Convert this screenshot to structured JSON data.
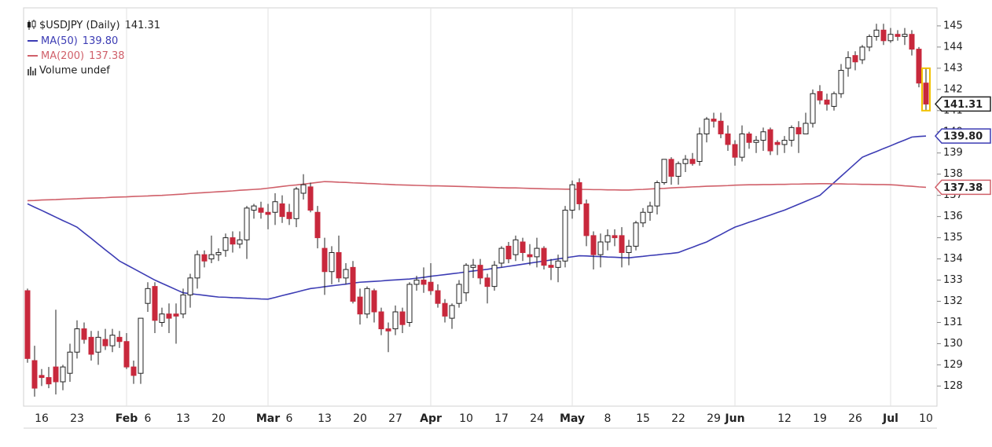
{
  "chart_data": {
    "type": "candlestick",
    "symbol": "$USDJPY (Daily)",
    "current": 141.31,
    "volume_label": "Volume undef",
    "categories": [
      null,
      null,
      "16",
      null,
      null,
      null,
      null,
      "23",
      null,
      null,
      null,
      null,
      null,
      null,
      "Feb",
      null,
      null,
      "6",
      null,
      null,
      null,
      null,
      "13",
      null,
      null,
      null,
      null,
      "20",
      null,
      null,
      null,
      null,
      null,
      null,
      "Mar",
      null,
      null,
      "6",
      null,
      null,
      null,
      null,
      "13",
      null,
      null,
      null,
      null,
      "20",
      null,
      null,
      null,
      null,
      "27",
      null,
      null,
      null,
      null,
      "Apr",
      null,
      null,
      null,
      null,
      "10",
      null,
      null,
      null,
      null,
      "17",
      null,
      null,
      null,
      null,
      "24",
      null,
      null,
      null,
      null,
      "May",
      null,
      null,
      null,
      null,
      "8",
      null,
      null,
      null,
      null,
      "15",
      null,
      null,
      null,
      null,
      "22",
      null,
      null,
      null,
      null,
      "29",
      null,
      null,
      "Jun",
      null,
      null,
      null,
      null,
      null,
      null,
      "12",
      null,
      null,
      null,
      null,
      "19",
      null,
      null,
      null,
      null,
      "26",
      null,
      null,
      null,
      null,
      "Jul",
      null,
      null,
      null,
      null,
      "10"
    ],
    "open": [
      132.5,
      129.2,
      128.5,
      128.4,
      128.9,
      128.2,
      128.6,
      129.6,
      130.7,
      130.3,
      129.6,
      130.2,
      129.9,
      130.3,
      130.1,
      128.9,
      128.6,
      131.9,
      132.7,
      131.0,
      131.4,
      131.4,
      131.4,
      132.3,
      133.1,
      134.2,
      134.0,
      134.2,
      134.4,
      135.0,
      134.7,
      134.9,
      136.3,
      136.4,
      136.2,
      136.2,
      136.6,
      136.2,
      135.9,
      137.1,
      137.4,
      136.2,
      134.5,
      133.4,
      134.3,
      133.1,
      133.6,
      132.2,
      131.4,
      132.5,
      131.5,
      130.7,
      130.7,
      131.5,
      131.0,
      132.8,
      133.0,
      132.9,
      132.5,
      131.9,
      131.2,
      131.9,
      132.4,
      133.6,
      133.7,
      133.1,
      132.7,
      133.8,
      134.6,
      134.2,
      134.8,
      134.2,
      134.1,
      134.5,
      133.7,
      133.6,
      133.9,
      136.3,
      137.6,
      136.6,
      135.1,
      134.2,
      134.8,
      135.1,
      135.1,
      134.3,
      134.6,
      135.7,
      136.2,
      136.5,
      137.6,
      138.7,
      137.9,
      138.5,
      138.7,
      138.6,
      139.9,
      140.6,
      140.5,
      139.9,
      139.4,
      138.8,
      139.9,
      139.5,
      139.6,
      140.1,
      139.5,
      139.4,
      139.6,
      140.2,
      139.9,
      140.4,
      141.9,
      141.5,
      141.2,
      141.8,
      143.0,
      143.6,
      143.4,
      144.0,
      144.5,
      144.8,
      144.3,
      144.6,
      144.5,
      144.6,
      143.9,
      142.3
    ],
    "high": [
      132.6,
      129.9,
      128.8,
      128.9,
      131.6,
      129.0,
      130.0,
      131.1,
      131.0,
      130.6,
      130.6,
      130.7,
      130.7,
      130.6,
      130.5,
      129.2,
      131.2,
      132.9,
      132.9,
      131.7,
      131.9,
      131.9,
      132.6,
      133.3,
      134.4,
      134.4,
      135.1,
      134.5,
      135.2,
      135.3,
      135.3,
      136.5,
      136.6,
      136.7,
      136.6,
      137.1,
      137.0,
      136.6,
      137.4,
      138.0,
      137.6,
      136.5,
      135.0,
      134.6,
      135.1,
      133.8,
      133.9,
      132.6,
      132.7,
      132.6,
      131.7,
      131.0,
      131.8,
      131.7,
      132.9,
      133.2,
      133.6,
      133.8,
      132.8,
      132.1,
      131.9,
      133.0,
      133.8,
      134.0,
      134.0,
      133.3,
      133.9,
      134.6,
      134.8,
      135.1,
      135.0,
      134.7,
      135.0,
      134.6,
      134.0,
      134.2,
      136.5,
      137.7,
      137.8,
      136.8,
      135.3,
      135.2,
      135.4,
      135.4,
      135.5,
      134.9,
      135.8,
      136.4,
      136.7,
      137.7,
      138.7,
      138.8,
      138.6,
      138.9,
      139.0,
      140.2,
      140.7,
      140.9,
      140.9,
      140.3,
      139.6,
      140.3,
      140.0,
      139.8,
      140.2,
      140.2,
      139.6,
      139.8,
      140.3,
      140.5,
      140.9,
      142.0,
      142.2,
      141.8,
      141.9,
      143.2,
      143.8,
      143.8,
      144.1,
      144.6,
      145.1,
      145.1,
      144.9,
      144.8,
      144.9,
      144.8,
      144.0,
      143.0
    ],
    "low": [
      129.1,
      127.5,
      128.0,
      127.9,
      127.6,
      127.8,
      128.2,
      129.3,
      130.0,
      129.2,
      129.0,
      129.7,
      129.6,
      129.8,
      128.8,
      128.1,
      128.1,
      131.5,
      130.5,
      130.8,
      130.5,
      130.0,
      131.2,
      131.7,
      132.6,
      133.6,
      133.8,
      133.9,
      134.1,
      134.3,
      134.5,
      134.0,
      135.9,
      135.9,
      135.4,
      135.6,
      135.7,
      135.6,
      135.5,
      136.8,
      136.2,
      134.5,
      132.3,
      132.8,
      132.9,
      132.8,
      131.9,
      130.9,
      131.2,
      131.0,
      130.4,
      129.6,
      130.4,
      130.5,
      130.8,
      132.5,
      132.4,
      132.3,
      131.7,
      131.0,
      130.7,
      131.7,
      132.0,
      133.1,
      132.8,
      131.9,
      132.5,
      133.6,
      133.8,
      133.9,
      133.9,
      133.7,
      133.6,
      133.5,
      133.0,
      132.9,
      133.6,
      135.9,
      136.3,
      134.6,
      133.5,
      133.6,
      134.4,
      134.6,
      133.6,
      133.7,
      134.4,
      135.5,
      135.8,
      136.1,
      137.5,
      137.5,
      137.5,
      138.1,
      138.4,
      138.4,
      139.5,
      140.2,
      139.7,
      139.1,
      138.4,
      138.6,
      139.2,
      139.0,
      139.1,
      138.9,
      138.9,
      139.0,
      139.3,
      139.0,
      139.9,
      140.2,
      141.3,
      141.0,
      141.0,
      141.6,
      142.6,
      142.9,
      143.2,
      143.8,
      144.3,
      144.1,
      144.2,
      144.3,
      144.1,
      143.6,
      142.1,
      141.0
    ],
    "close": [
      129.3,
      127.9,
      128.4,
      128.1,
      128.2,
      128.9,
      129.6,
      130.7,
      130.2,
      129.5,
      130.3,
      129.9,
      130.4,
      130.1,
      128.9,
      128.5,
      131.2,
      132.6,
      131.1,
      131.4,
      131.2,
      131.3,
      132.3,
      133.1,
      134.2,
      133.9,
      134.2,
      134.3,
      135.0,
      134.7,
      134.9,
      136.4,
      136.5,
      136.2,
      136.1,
      136.7,
      136.0,
      135.9,
      137.3,
      137.5,
      136.3,
      135.0,
      133.4,
      134.3,
      133.1,
      133.5,
      132.0,
      131.4,
      132.6,
      131.5,
      130.7,
      130.6,
      131.5,
      130.9,
      132.8,
      133.0,
      132.8,
      132.5,
      131.9,
      131.3,
      131.8,
      132.8,
      133.7,
      133.7,
      133.1,
      132.7,
      133.7,
      134.5,
      134.0,
      134.9,
      134.3,
      134.1,
      134.5,
      133.7,
      133.6,
      133.9,
      136.3,
      137.5,
      136.6,
      135.1,
      134.2,
      134.8,
      135.1,
      135.0,
      134.3,
      134.6,
      135.7,
      136.2,
      136.5,
      137.6,
      138.7,
      137.9,
      138.5,
      138.7,
      138.5,
      139.9,
      140.6,
      140.5,
      139.9,
      139.4,
      138.8,
      139.9,
      139.5,
      139.6,
      140.0,
      139.1,
      139.4,
      139.6,
      140.2,
      139.9,
      140.4,
      141.8,
      141.5,
      141.3,
      141.8,
      142.9,
      143.5,
      143.3,
      144.0,
      144.5,
      144.8,
      144.3,
      144.6,
      144.5,
      144.6,
      143.9,
      142.3,
      141.31
    ],
    "up_color": "#ffffff",
    "down_color": "#c8283c",
    "outline_color": "#222222",
    "last_highlight": "#f2c200",
    "series": [
      {
        "name": "MA(50)",
        "current": "139.80",
        "color": "#3c3cb4",
        "values": [
          136.6,
          136.44,
          136.29,
          136.13,
          135.97,
          135.81,
          135.66,
          135.5,
          135.23,
          134.97,
          134.7,
          134.43,
          134.17,
          133.9,
          133.72,
          133.54,
          133.36,
          133.18,
          133.0,
          132.85,
          132.7,
          132.55,
          132.4,
          132.36,
          132.32,
          132.28,
          132.24,
          132.2,
          132.19,
          132.17,
          132.16,
          132.14,
          132.13,
          132.11,
          132.1,
          132.18,
          132.27,
          132.35,
          132.43,
          132.52,
          132.6,
          132.64,
          132.69,
          132.73,
          132.77,
          132.81,
          132.86,
          132.9,
          132.92,
          132.94,
          132.96,
          132.99,
          133.01,
          133.03,
          133.05,
          133.09,
          133.13,
          133.18,
          133.22,
          133.26,
          133.3,
          133.34,
          133.39,
          133.43,
          133.47,
          133.51,
          133.56,
          133.6,
          133.65,
          133.7,
          133.75,
          133.8,
          133.85,
          133.9,
          133.95,
          134.0,
          134.05,
          134.1,
          134.15,
          134.14,
          134.12,
          134.11,
          134.09,
          134.08,
          134.06,
          134.05,
          134.09,
          134.12,
          134.16,
          134.19,
          134.23,
          134.26,
          134.3,
          134.43,
          134.55,
          134.68,
          134.8,
          134.98,
          135.15,
          135.33,
          135.5,
          135.61,
          135.73,
          135.84,
          135.96,
          136.07,
          136.19,
          136.3,
          136.44,
          136.58,
          136.72,
          136.86,
          137.0,
          137.3,
          137.6,
          137.9,
          138.2,
          138.5,
          138.8,
          138.94,
          139.07,
          139.21,
          139.34,
          139.48,
          139.61,
          139.75,
          139.78,
          139.8
        ]
      },
      {
        "name": "MA(200)",
        "current": "137.38",
        "color": "#d0606a",
        "values": [
          136.75,
          136.76,
          136.78,
          136.79,
          136.8,
          136.82,
          136.83,
          136.84,
          136.86,
          136.87,
          136.88,
          136.89,
          136.91,
          136.92,
          136.93,
          136.95,
          136.96,
          136.97,
          136.99,
          137.0,
          137.02,
          137.04,
          137.06,
          137.09,
          137.11,
          137.13,
          137.15,
          137.17,
          137.19,
          137.21,
          137.24,
          137.26,
          137.28,
          137.3,
          137.34,
          137.38,
          137.42,
          137.46,
          137.49,
          137.53,
          137.57,
          137.61,
          137.65,
          137.64,
          137.62,
          137.61,
          137.59,
          137.58,
          137.56,
          137.55,
          137.53,
          137.52,
          137.5,
          137.49,
          137.48,
          137.47,
          137.46,
          137.45,
          137.45,
          137.44,
          137.43,
          137.42,
          137.41,
          137.4,
          137.39,
          137.38,
          137.37,
          137.36,
          137.35,
          137.35,
          137.34,
          137.33,
          137.32,
          137.31,
          137.3,
          137.3,
          137.29,
          137.29,
          137.28,
          137.28,
          137.27,
          137.27,
          137.26,
          137.26,
          137.25,
          137.25,
          137.27,
          137.28,
          137.3,
          137.32,
          137.33,
          137.35,
          137.37,
          137.38,
          137.4,
          137.41,
          137.43,
          137.44,
          137.45,
          137.46,
          137.48,
          137.49,
          137.5,
          137.5,
          137.51,
          137.51,
          137.52,
          137.52,
          137.53,
          137.53,
          137.54,
          137.54,
          137.55,
          137.55,
          137.54,
          137.54,
          137.53,
          137.53,
          137.52,
          137.52,
          137.51,
          137.51,
          137.5,
          137.48,
          137.45,
          137.43,
          137.4,
          137.38
        ]
      }
    ],
    "ylim": [
      127.05,
      145.85
    ],
    "yticks": [
      128,
      129,
      130,
      131,
      132,
      133,
      134,
      135,
      136,
      137,
      138,
      139,
      140,
      141,
      142,
      143,
      144,
      145
    ],
    "grid": true
  }
}
